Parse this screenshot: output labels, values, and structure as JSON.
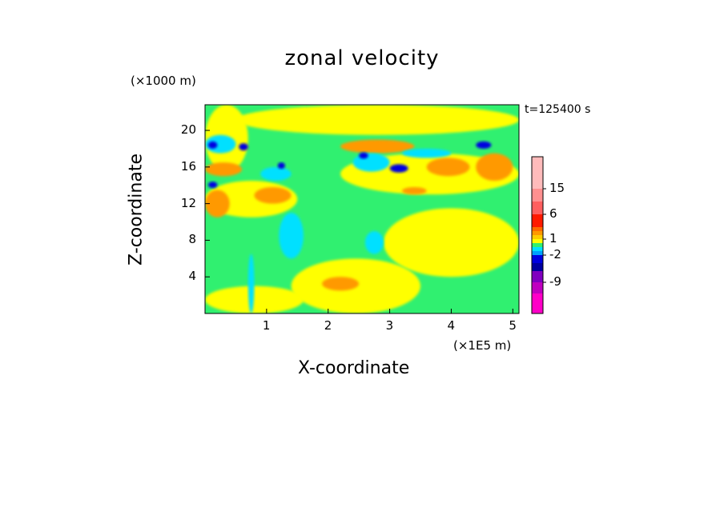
{
  "chart_data": {
    "type": "heatmap",
    "title": "zonal velocity",
    "xlabel": "X-coordinate",
    "ylabel": "Z-coordinate",
    "x_unit": "(×1E5 m)",
    "y_unit": "(×1000 m)",
    "annotation": "t=125400 s",
    "xlim": [
      0,
      5.1
    ],
    "ylim": [
      0,
      22.8
    ],
    "x_ticks": [
      "1",
      "2",
      "3",
      "4",
      "5"
    ],
    "y_ticks": [
      "4",
      "8",
      "12",
      "16",
      "20"
    ],
    "colorbar": {
      "labels": [
        "15",
        "6",
        "1",
        "-2",
        "-9"
      ],
      "label_values": [
        15,
        6,
        1,
        -2,
        -9
      ],
      "bands": [
        {
          "color": "#ff00c8"
        },
        {
          "color": "#c000c0"
        },
        {
          "color": "#8000c0"
        },
        {
          "color": "#0000a0"
        },
        {
          "color": "#0000e0"
        },
        {
          "color": "#00a0ff"
        },
        {
          "color": "#00e0ff"
        },
        {
          "color": "#30f070"
        },
        {
          "color": "#ffff00"
        },
        {
          "color": "#ffcc00"
        },
        {
          "color": "#ff9900"
        },
        {
          "color": "#ff6a00"
        },
        {
          "color": "#ff1a00"
        },
        {
          "color": "#ff5f5f"
        },
        {
          "color": "#ff9090"
        },
        {
          "color": "#ffbbbb"
        }
      ]
    },
    "field_regions": [
      {
        "value": 0,
        "color": "#30f070",
        "x": [
          0,
          5.1
        ],
        "y": [
          0,
          22.8
        ]
      },
      {
        "value": 0.5,
        "color": "#ffff00",
        "x": [
          0.0,
          1.6
        ],
        "y": [
          0.0,
          3.0
        ]
      },
      {
        "value": 0.5,
        "color": "#ffff00",
        "x": [
          1.4,
          3.5
        ],
        "y": [
          0.0,
          6.0
        ]
      },
      {
        "value": 0.5,
        "color": "#ffff00",
        "x": [
          2.9,
          5.1
        ],
        "y": [
          4.0,
          11.5
        ]
      },
      {
        "value": 0.5,
        "color": "#ffff00",
        "x": [
          2.2,
          5.1
        ],
        "y": [
          13.0,
          17.5
        ]
      },
      {
        "value": 0.5,
        "color": "#ffff00",
        "x": [
          0.0,
          1.5
        ],
        "y": [
          10.5,
          14.5
        ]
      },
      {
        "value": 0.5,
        "color": "#ffff00",
        "x": [
          0.5,
          5.1
        ],
        "y": [
          19.5,
          22.8
        ]
      },
      {
        "value": 0.5,
        "color": "#ffff00",
        "x": [
          0.0,
          0.7
        ],
        "y": [
          15.5,
          22.8
        ]
      },
      {
        "value": 2,
        "color": "#ff9900",
        "x": [
          3.6,
          4.3
        ],
        "y": [
          15.0,
          17.0
        ]
      },
      {
        "value": 2,
        "color": "#ff9900",
        "x": [
          4.4,
          5.0
        ],
        "y": [
          14.5,
          17.5
        ]
      },
      {
        "value": 2,
        "color": "#ff9900",
        "x": [
          2.2,
          3.4
        ],
        "y": [
          17.5,
          19.0
        ]
      },
      {
        "value": 2,
        "color": "#ff9900",
        "x": [
          0.8,
          1.4
        ],
        "y": [
          12.0,
          13.8
        ]
      },
      {
        "value": 2,
        "color": "#ff9900",
        "x": [
          0.0,
          0.4
        ],
        "y": [
          10.5,
          13.5
        ]
      },
      {
        "value": 2,
        "color": "#ff9900",
        "x": [
          0.0,
          0.6
        ],
        "y": [
          15.0,
          16.5
        ]
      },
      {
        "value": 2,
        "color": "#ff9900",
        "x": [
          1.9,
          2.5
        ],
        "y": [
          2.5,
          4.0
        ]
      },
      {
        "value": 2,
        "color": "#ff9900",
        "x": [
          3.2,
          3.6
        ],
        "y": [
          13.0,
          13.8
        ]
      },
      {
        "value": -1,
        "color": "#00e0ff",
        "x": [
          2.4,
          3.0
        ],
        "y": [
          15.5,
          17.5
        ]
      },
      {
        "value": -1,
        "color": "#00e0ff",
        "x": [
          3.2,
          4.0
        ],
        "y": [
          17.0,
          18.0
        ]
      },
      {
        "value": -1,
        "color": "#00e0ff",
        "x": [
          1.2,
          1.6
        ],
        "y": [
          6.0,
          11.0
        ]
      },
      {
        "value": -1,
        "color": "#00e0ff",
        "x": [
          0.9,
          1.4
        ],
        "y": [
          14.5,
          16.0
        ]
      },
      {
        "value": -1,
        "color": "#00e0ff",
        "x": [
          0.7,
          0.8
        ],
        "y": [
          0.0,
          6.5
        ]
      },
      {
        "value": -1,
        "color": "#00e0ff",
        "x": [
          2.6,
          2.9
        ],
        "y": [
          6.5,
          9.0
        ]
      },
      {
        "value": -1,
        "color": "#00e0ff",
        "x": [
          0.0,
          0.5
        ],
        "y": [
          17.5,
          19.5
        ]
      },
      {
        "value": -4,
        "color": "#0000e0",
        "x": [
          3.0,
          3.3
        ],
        "y": [
          15.4,
          16.3
        ]
      },
      {
        "value": -4,
        "color": "#0000e0",
        "x": [
          4.4,
          4.65
        ],
        "y": [
          18.0,
          18.8
        ]
      },
      {
        "value": -4,
        "color": "#0000e0",
        "x": [
          0.05,
          0.2
        ],
        "y": [
          18.0,
          18.8
        ]
      },
      {
        "value": -4,
        "color": "#0000e0",
        "x": [
          0.05,
          0.2
        ],
        "y": [
          13.7,
          14.4
        ]
      },
      {
        "value": -4,
        "color": "#0000e0",
        "x": [
          0.55,
          0.7
        ],
        "y": [
          17.8,
          18.6
        ]
      },
      {
        "value": -4,
        "color": "#0000e0",
        "x": [
          2.5,
          2.65
        ],
        "y": [
          16.9,
          17.6
        ]
      },
      {
        "value": -4,
        "color": "#0000e0",
        "x": [
          1.18,
          1.3
        ],
        "y": [
          15.8,
          16.5
        ]
      }
    ]
  }
}
